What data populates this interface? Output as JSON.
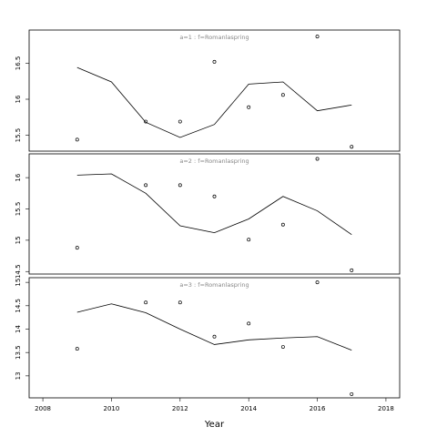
{
  "chart_data": [
    {
      "type": "line",
      "title": "a=1  :  f=Romanlaspring",
      "x": [
        2009,
        2010,
        2011,
        2012,
        2013,
        2014,
        2015,
        2016,
        2017
      ],
      "series": [
        {
          "style": "points",
          "color": "#000000",
          "values": [
            15.44,
            null,
            15.69,
            15.69,
            16.52,
            15.89,
            16.06,
            16.87,
            15.34
          ]
        },
        {
          "style": "line",
          "color": "#000000",
          "values": [
            16.44,
            16.24,
            15.68,
            15.47,
            15.65,
            16.21,
            16.24,
            15.84,
            15.92
          ]
        }
      ],
      "xlim": [
        2007.6,
        2018.4
      ],
      "ylim": [
        15.28,
        16.96
      ],
      "yticks": [
        15.5,
        16.0,
        16.5
      ]
    },
    {
      "type": "line",
      "title": "a=2  :  f=Romanlaspring",
      "x": [
        2009,
        2010,
        2011,
        2012,
        2013,
        2014,
        2015,
        2016,
        2017
      ],
      "series": [
        {
          "style": "points",
          "color": "#000000",
          "values": [
            14.88,
            null,
            15.88,
            15.88,
            15.7,
            15.01,
            15.25,
            16.3,
            14.52
          ]
        },
        {
          "style": "line",
          "color": "#000000",
          "values": [
            16.04,
            16.06,
            15.75,
            15.23,
            15.12,
            15.34,
            15.7,
            15.47,
            15.09
          ]
        }
      ],
      "xlim": [
        2007.6,
        2018.4
      ],
      "ylim": [
        14.46,
        16.38
      ],
      "yticks": [
        14.5,
        15.0,
        15.5,
        16.0
      ]
    },
    {
      "type": "line",
      "title": "a=3  :  f=Romanlaspring",
      "x": [
        2009,
        2010,
        2011,
        2012,
        2013,
        2014,
        2015,
        2016,
        2017
      ],
      "series": [
        {
          "style": "points",
          "color": "#000000",
          "values": [
            13.58,
            null,
            14.57,
            14.57,
            13.84,
            14.12,
            13.62,
            15.0,
            12.61
          ]
        },
        {
          "style": "line",
          "color": "#000000",
          "values": [
            14.36,
            14.54,
            14.35,
            14.0,
            13.67,
            13.77,
            13.81,
            13.84,
            13.55
          ]
        }
      ],
      "xlim": [
        2007.6,
        2018.4
      ],
      "ylim": [
        12.53,
        15.1
      ],
      "yticks": [
        13.0,
        13.5,
        14.0,
        14.5,
        15.0
      ],
      "xlabel": "Year",
      "xticks": [
        2008,
        2010,
        2012,
        2014,
        2016,
        2018
      ]
    }
  ]
}
